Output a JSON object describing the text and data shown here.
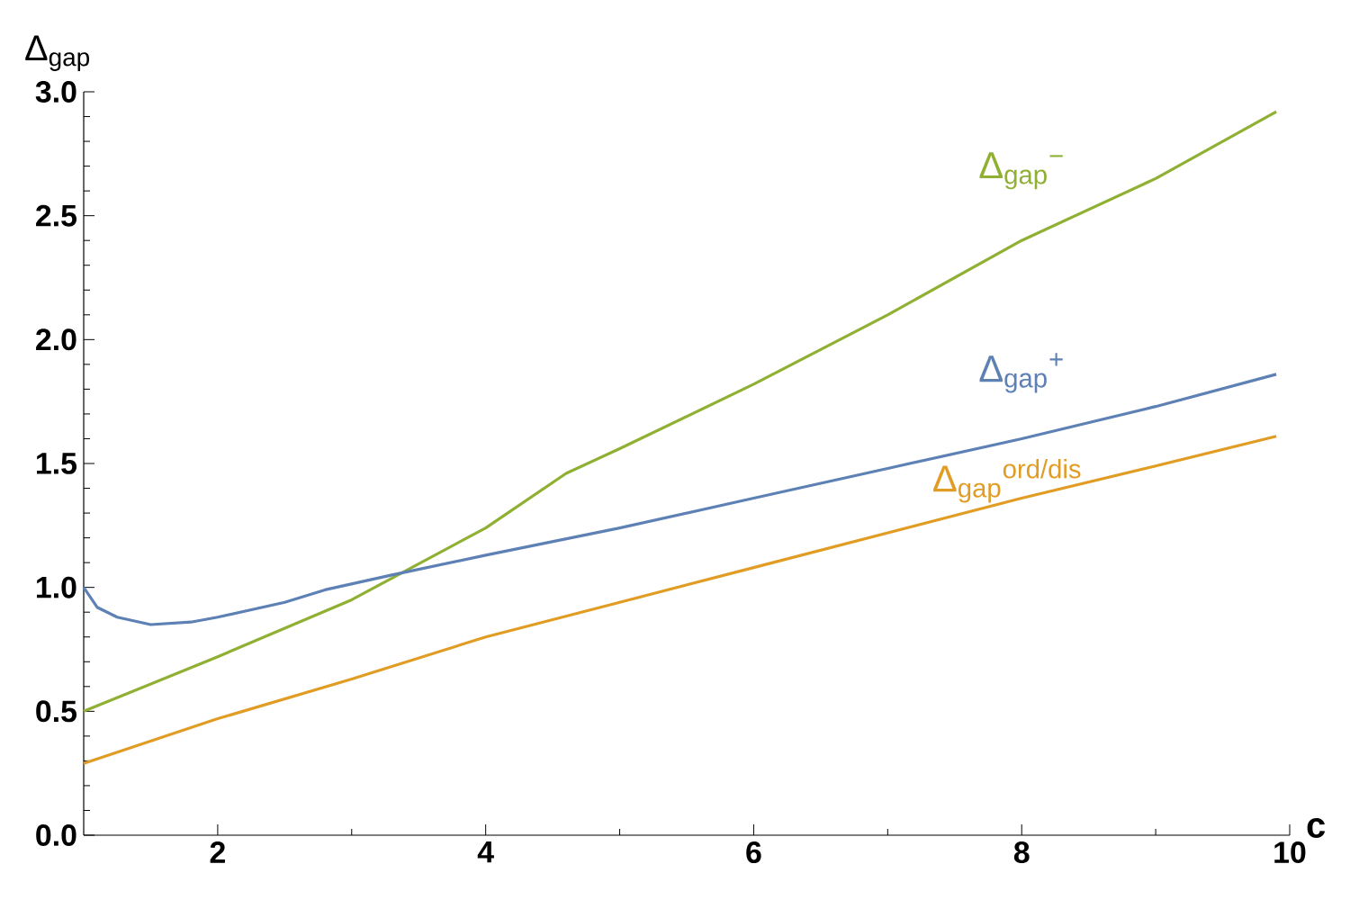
{
  "chart_data": {
    "type": "line",
    "xlabel": "c",
    "ylabel": "Δ$_{gap}$",
    "xlim": [
      1,
      10
    ],
    "ylim": [
      0,
      3
    ],
    "xticks": [
      2,
      4,
      6,
      8,
      10
    ],
    "yticks": [
      {
        "value": 0,
        "label": "0.0"
      },
      {
        "value": 0.5,
        "label": "0.5"
      },
      {
        "value": 1,
        "label": "1.0"
      },
      {
        "value": 1.5,
        "label": "1.5"
      },
      {
        "value": 2,
        "label": "2.0"
      },
      {
        "value": 2.5,
        "label": "2.5"
      },
      {
        "value": 3,
        "label": "3.0"
      }
    ],
    "grid": false,
    "marker": "none",
    "line_style": "solid",
    "series": [
      {
        "name": "Δ$_{gap}$$^{−}$",
        "color": "#8fb032",
        "x": [
          1,
          2,
          3,
          4,
          4.6,
          5,
          6,
          7,
          8,
          9,
          9.9
        ],
        "values": [
          0.5,
          0.72,
          0.95,
          1.24,
          1.46,
          1.56,
          1.82,
          2.1,
          2.4,
          2.65,
          2.92
        ]
      },
      {
        "name": "Δ$_{gap}$$^{+}$",
        "color": "#5e81b5",
        "x": [
          1,
          1.1,
          1.25,
          1.5,
          1.8,
          2,
          2.5,
          2.8,
          3.3,
          4,
          5,
          6,
          7,
          8,
          9,
          9.9
        ],
        "values": [
          1.0,
          0.92,
          0.88,
          0.85,
          0.86,
          0.88,
          0.94,
          0.99,
          1.05,
          1.13,
          1.24,
          1.36,
          1.48,
          1.6,
          1.73,
          1.86
        ]
      },
      {
        "name": "Δ$_{gap}$$^{ord/dis}$",
        "color": "#e19c24",
        "x": [
          1,
          2,
          3,
          4,
          5,
          6,
          7,
          8,
          9,
          9.9
        ],
        "values": [
          0.29,
          0.47,
          0.63,
          0.8,
          0.94,
          1.08,
          1.22,
          1.36,
          1.49,
          1.61
        ]
      }
    ]
  }
}
